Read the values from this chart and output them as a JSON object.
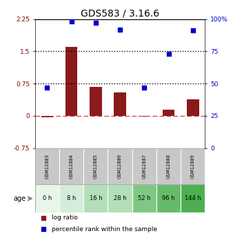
{
  "title": "GDS583 / 3.16.6",
  "samples": [
    "GSM12883",
    "GSM12884",
    "GSM12885",
    "GSM12886",
    "GSM12887",
    "GSM12888",
    "GSM12889"
  ],
  "ages": [
    "0 h",
    "8 h",
    "16 h",
    "28 h",
    "52 h",
    "96 h",
    "144 h"
  ],
  "log_ratio": [
    -0.03,
    1.6,
    0.68,
    0.55,
    -0.02,
    0.15,
    0.38
  ],
  "percentile_rank": [
    47,
    98,
    97,
    92,
    47,
    73,
    91
  ],
  "bar_color": "#8B1A1A",
  "dot_color": "#0000CD",
  "left_ylim": [
    -0.75,
    2.25
  ],
  "right_ylim": [
    0,
    100
  ],
  "left_yticks": [
    -0.75,
    0,
    0.75,
    1.5,
    2.25
  ],
  "right_yticks": [
    0,
    25,
    50,
    75,
    100
  ],
  "age_colors": [
    "#e8f5e9",
    "#d4edda",
    "#b2dfb8",
    "#b2dfb8",
    "#81c784",
    "#66bb6a",
    "#4caf50"
  ],
  "sample_box_color": "#c8c8c8",
  "left_tick_color": "#8B0000",
  "right_tick_color": "#0000CD",
  "zero_line_color": "#cc3333",
  "dotted_line_color": "#000000",
  "title_fontsize": 10,
  "bar_width": 0.5
}
